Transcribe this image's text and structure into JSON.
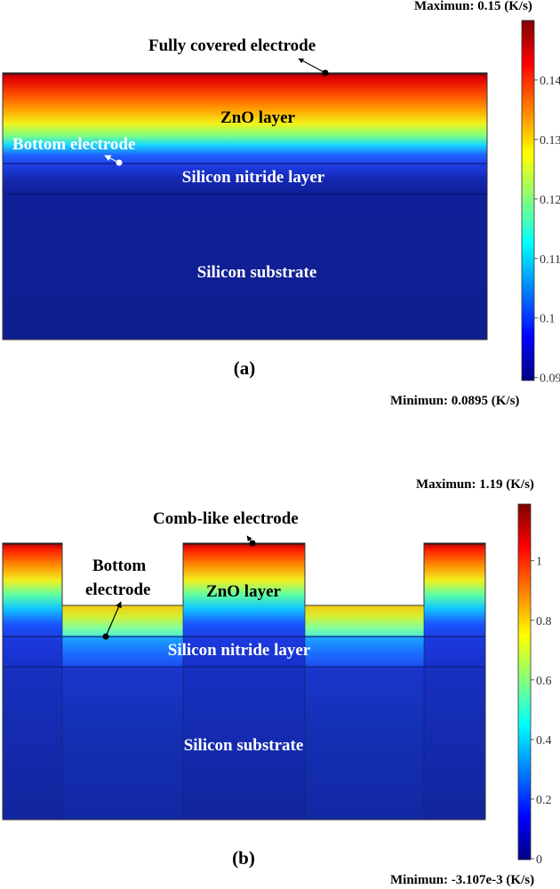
{
  "panel_a": {
    "caption": "(a)",
    "top_electrode_label": "Fully covered electrode",
    "zno_label": "ZnO layer",
    "bottom_electrode_label": "Bottom electrode",
    "nitride_label": "Silicon nitride layer",
    "substrate_label": "Silicon substrate",
    "colorbar": {
      "max_label": "Maximun: 0.15 (K/s)",
      "min_label": "Minimun: 0.0895 (K/s)",
      "range": [
        0.0895,
        0.15
      ],
      "ticks": [
        "0.14",
        "0.13",
        "0.12",
        "0.11",
        "0.1",
        "0.09"
      ]
    }
  },
  "panel_b": {
    "caption": "(b)",
    "top_electrode_label": "Comb-like electrode",
    "bottom_electrode_label_line1": "Bottom",
    "bottom_electrode_label_line2": "electrode",
    "zno_label": "ZnO layer",
    "nitride_label": "Silicon nitride layer",
    "substrate_label": "Silicon substrate",
    "colorbar": {
      "max_label": "Maximun: 1.19 (K/s)",
      "min_label": "Minimun: -3.107e-3 (K/s)",
      "range": [
        -0.003107,
        1.19
      ],
      "ticks": [
        "1",
        "0.8",
        "0.6",
        "0.4",
        "0.2",
        "0"
      ]
    }
  },
  "colormap": "jet"
}
